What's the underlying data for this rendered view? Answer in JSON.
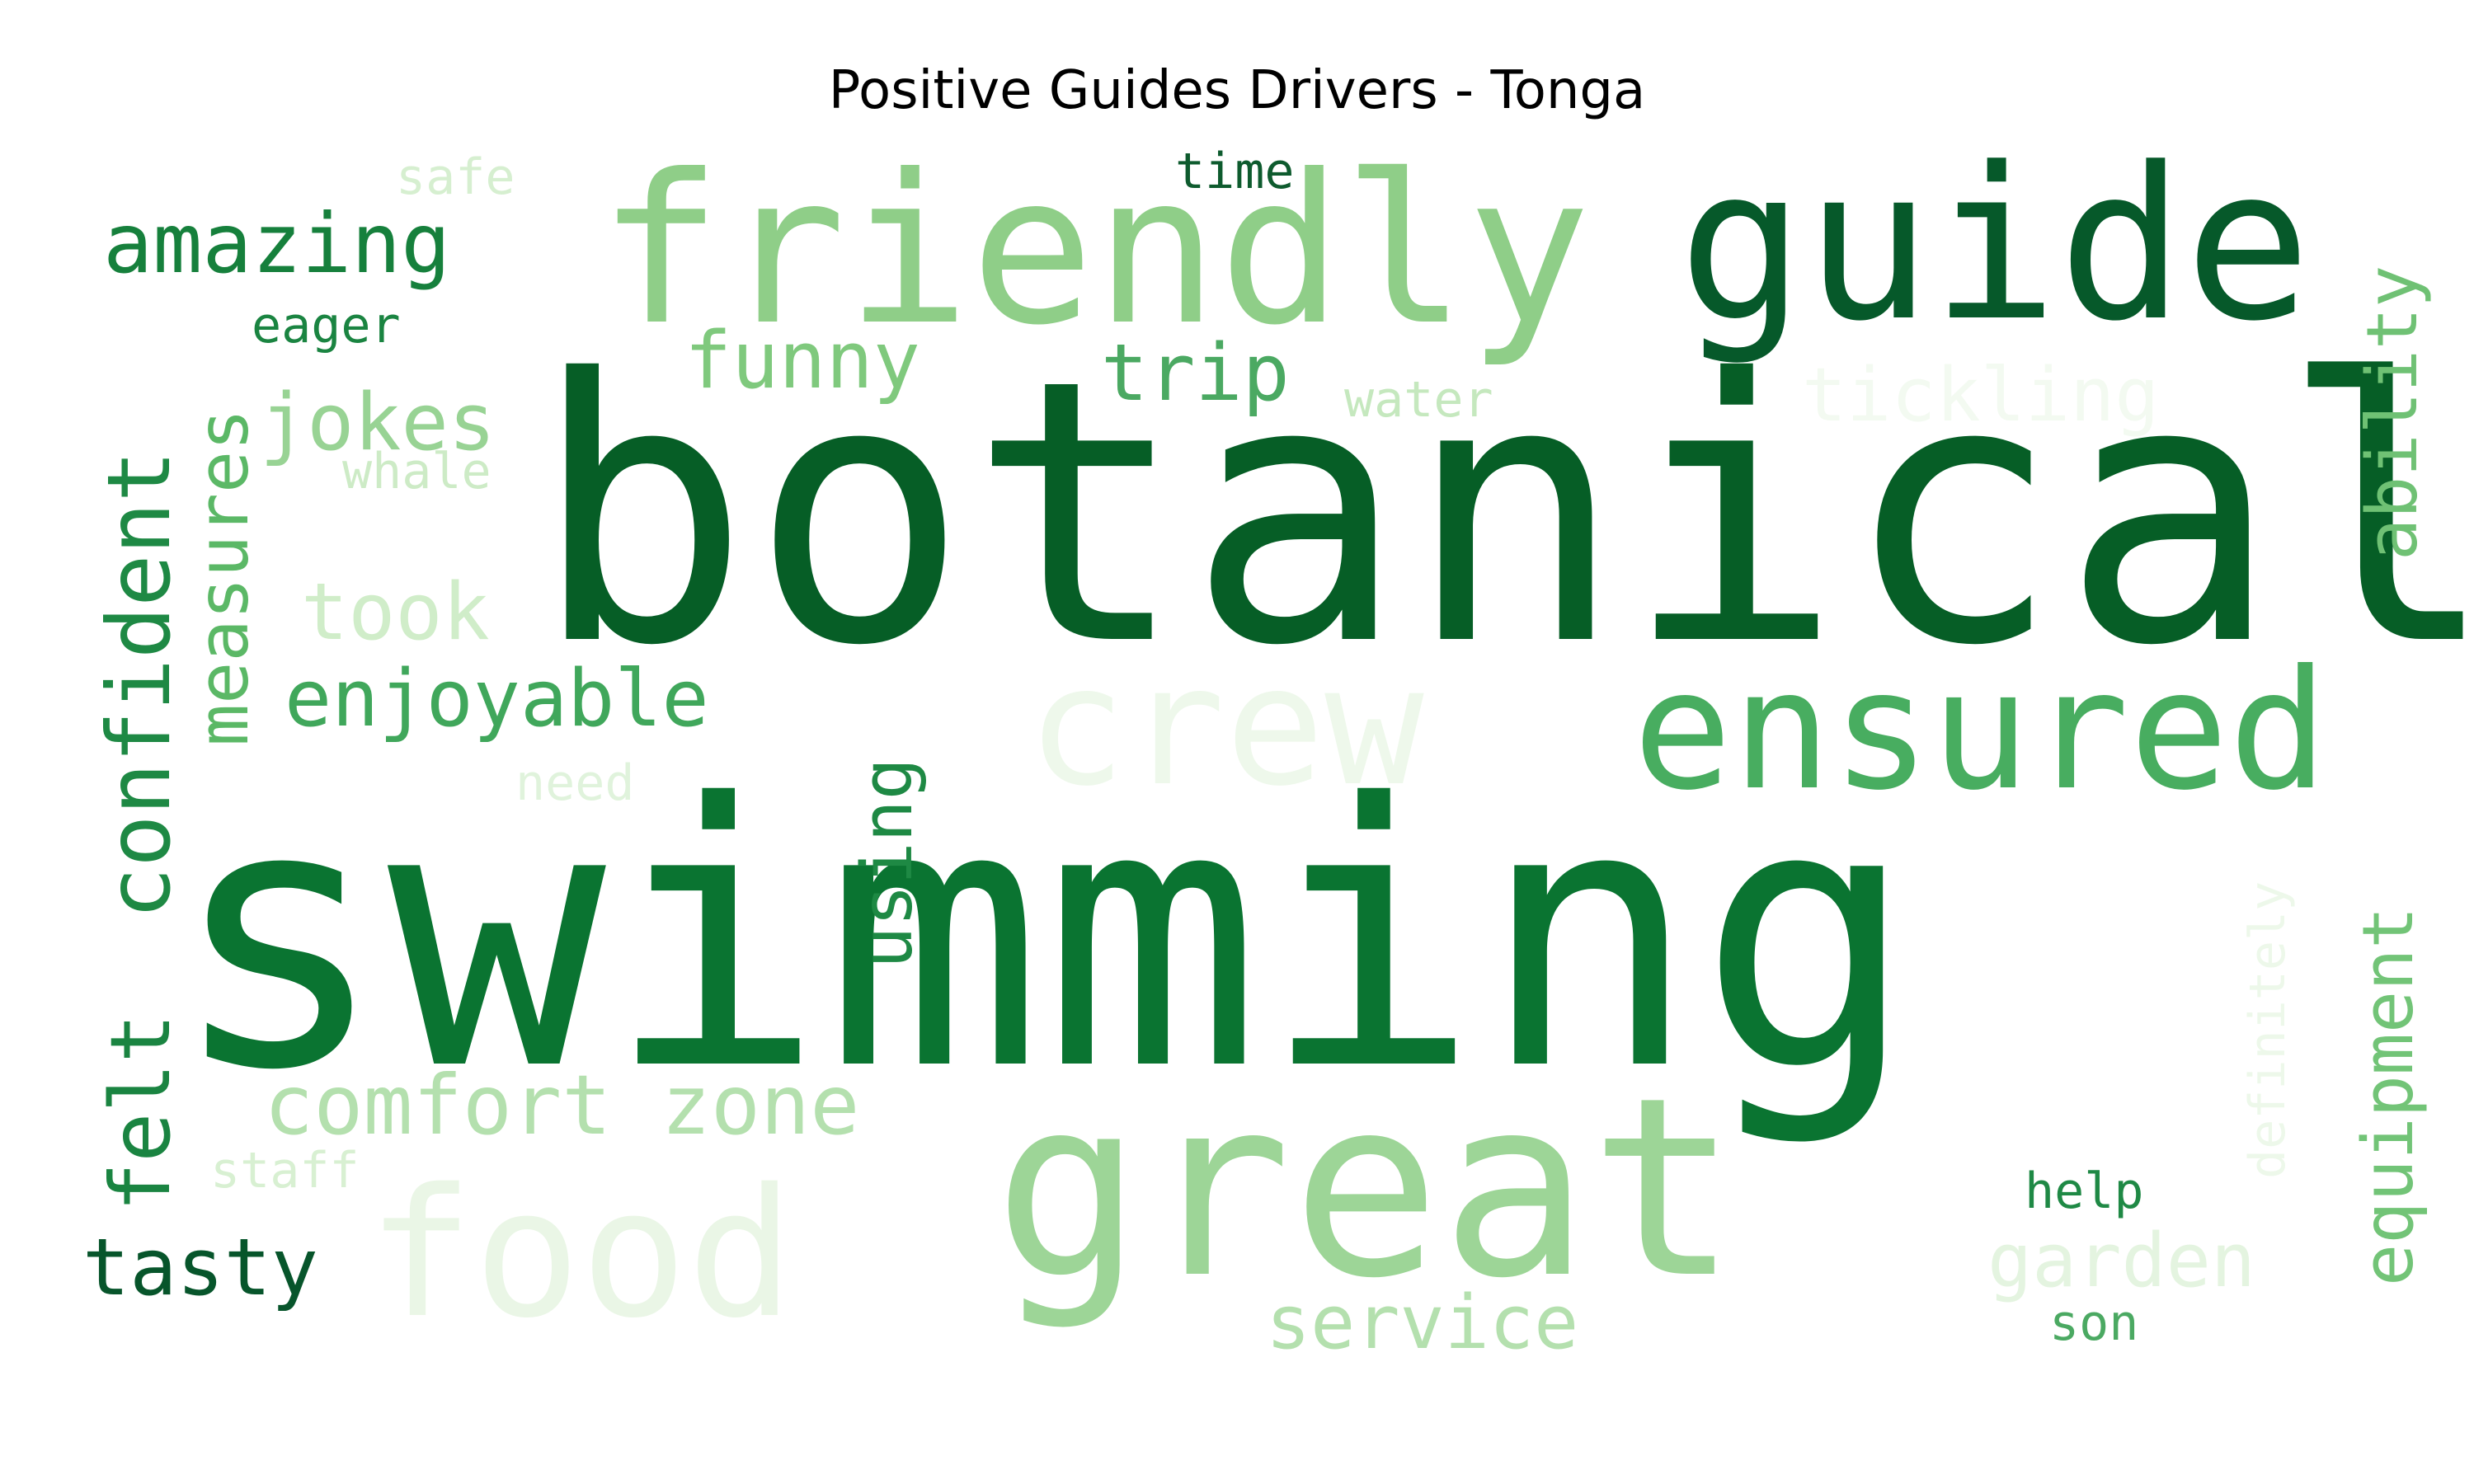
{
  "title": "Positive Guides Drivers - Tonga",
  "words": [
    {
      "text": "swimming",
      "color": "#0a7431"
    },
    {
      "text": "botanical",
      "color": "#065e26"
    },
    {
      "text": "great",
      "color": "#9dd597"
    },
    {
      "text": "friendly",
      "color": "#8fce88"
    },
    {
      "text": "guide",
      "color": "#06592a"
    },
    {
      "text": "crew",
      "color": "#eef8eb"
    },
    {
      "text": "food",
      "color": "#eaf6e6"
    },
    {
      "text": "ensured",
      "color": "#48ad60"
    },
    {
      "text": "amazing",
      "color": "#16803c"
    },
    {
      "text": "confident",
      "color": "#1e8944"
    },
    {
      "text": "felt",
      "color": "#1a8441"
    },
    {
      "text": "measures",
      "color": "#5bb866"
    },
    {
      "text": "comfort zone",
      "color": "#b4e0ae"
    },
    {
      "text": "tasty",
      "color": "#07552b"
    },
    {
      "text": "ability",
      "color": "#6fc174"
    },
    {
      "text": "equipment",
      "color": "#72c477"
    },
    {
      "text": "jokes",
      "color": "#98d394"
    },
    {
      "text": "enjoyable",
      "color": "#40a75b"
    },
    {
      "text": "took",
      "color": "#d0edc9"
    },
    {
      "text": "funny",
      "color": "#7fc97d"
    },
    {
      "text": "trip",
      "color": "#4ba962"
    },
    {
      "text": "using",
      "color": "#1e8944"
    },
    {
      "text": "service",
      "color": "#b4e0ae"
    },
    {
      "text": "garden",
      "color": "#e4f4e0"
    },
    {
      "text": "tickling",
      "color": "#f3faf1"
    },
    {
      "text": "definitely",
      "color": "#edf8ea"
    },
    {
      "text": "safe",
      "color": "#d6efd0"
    },
    {
      "text": "time",
      "color": "#0e5b2e"
    },
    {
      "text": "eager",
      "color": "#1a8441"
    },
    {
      "text": "water",
      "color": "#c5e8be"
    },
    {
      "text": "whale",
      "color": "#cdebc6"
    },
    {
      "text": "need",
      "color": "#e0f3dc"
    },
    {
      "text": "staff",
      "color": "#d8f0d2"
    },
    {
      "text": "help",
      "color": "#1f8945"
    },
    {
      "text": "son",
      "color": "#4ba962"
    }
  ]
}
